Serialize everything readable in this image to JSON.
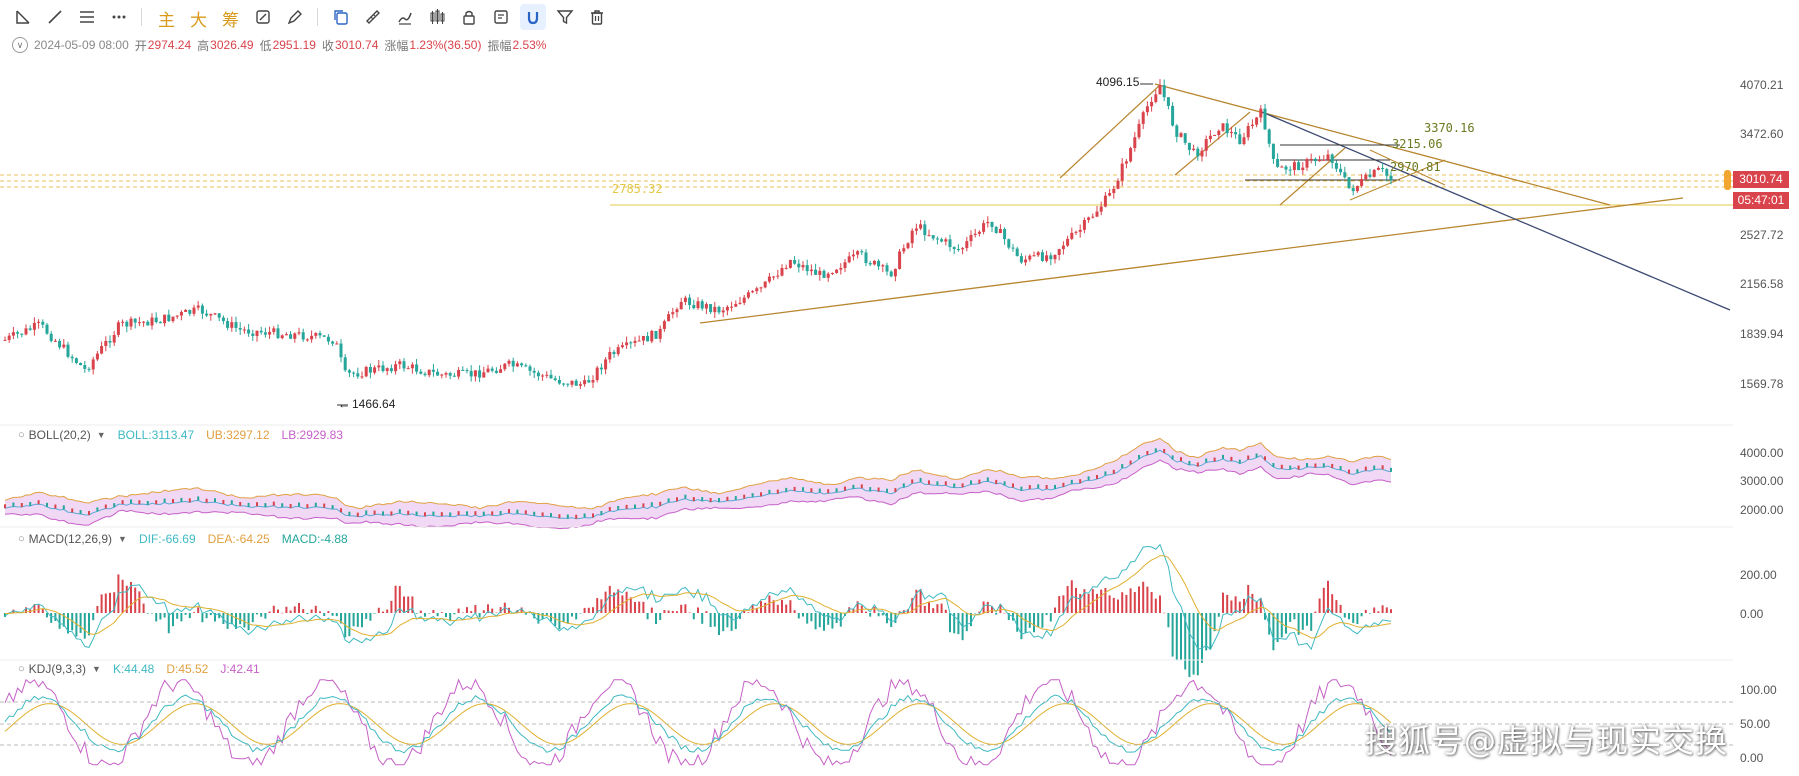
{
  "toolbar": {
    "icons": [
      "line-segment-icon",
      "trend-line-icon",
      "horizontal-lines-icon",
      "more-tools-icon",
      "magnet-icon",
      "ruler-icon",
      "brush-icon",
      "candles-icon",
      "lock-icon",
      "notes-icon",
      "magnet-active-icon",
      "filter-icon",
      "trash-icon"
    ],
    "main_label": "主",
    "big_label": "大",
    "chip_label": "筹"
  },
  "info_bar": {
    "date": "2024-05-09 08:00",
    "open_label": "开",
    "open": "2974.24",
    "high_label": "高",
    "high": "3026.49",
    "low_label": "低",
    "low": "2951.19",
    "close_label": "收",
    "close": "3010.74",
    "change_label": "涨幅",
    "change": "1.23%(36.50)",
    "amplitude_label": "振幅",
    "amplitude": "2.53%"
  },
  "price_axis": {
    "ticks": [
      "4070.21",
      "3472.60",
      "2527.72",
      "2156.58",
      "1839.94",
      "1569.78"
    ],
    "current_price": "3010.74",
    "countdown": "05:47:01"
  },
  "annotations": {
    "high_marker": "4096.15",
    "low_marker": "1466.64",
    "level_3370": "3370.16",
    "level_3215": "3215.06",
    "level_2970": "2970.81",
    "level_2785": "2785.32"
  },
  "boll": {
    "name": "BOLL(20,2)",
    "boll": "BOLL:3113.47",
    "ub": "UB:3297.12",
    "lb": "LB:2929.83",
    "ticks": [
      "4000.00",
      "3000.00",
      "2000.00"
    ]
  },
  "macd": {
    "name": "MACD(12,26,9)",
    "dif": "DIF:-66.69",
    "dea": "DEA:-64.25",
    "macd": "MACD:-4.88",
    "ticks": [
      "200.00",
      "0.00"
    ]
  },
  "kdj": {
    "name": "KDJ(9,3,3)",
    "k": "K:44.48",
    "d": "D:45.52",
    "j": "J:42.41",
    "ticks": [
      "100.00",
      "50.00",
      "0.00"
    ]
  },
  "watermark": "搜狐号@虚拟与现实交换",
  "colors": {
    "up": "#d9434b",
    "down": "#26a69a",
    "accent_gold": "#d99a1c",
    "trendline": "#b8862f",
    "navy_line": "#3d4a73",
    "boll_mid": "#5aa9d6",
    "boll_ub": "#e0a040",
    "boll_lb": "#c660c8",
    "kdj_k": "#3fb9c2",
    "kdj_d": "#e0b030",
    "kdj_j": "#c660c8"
  }
}
